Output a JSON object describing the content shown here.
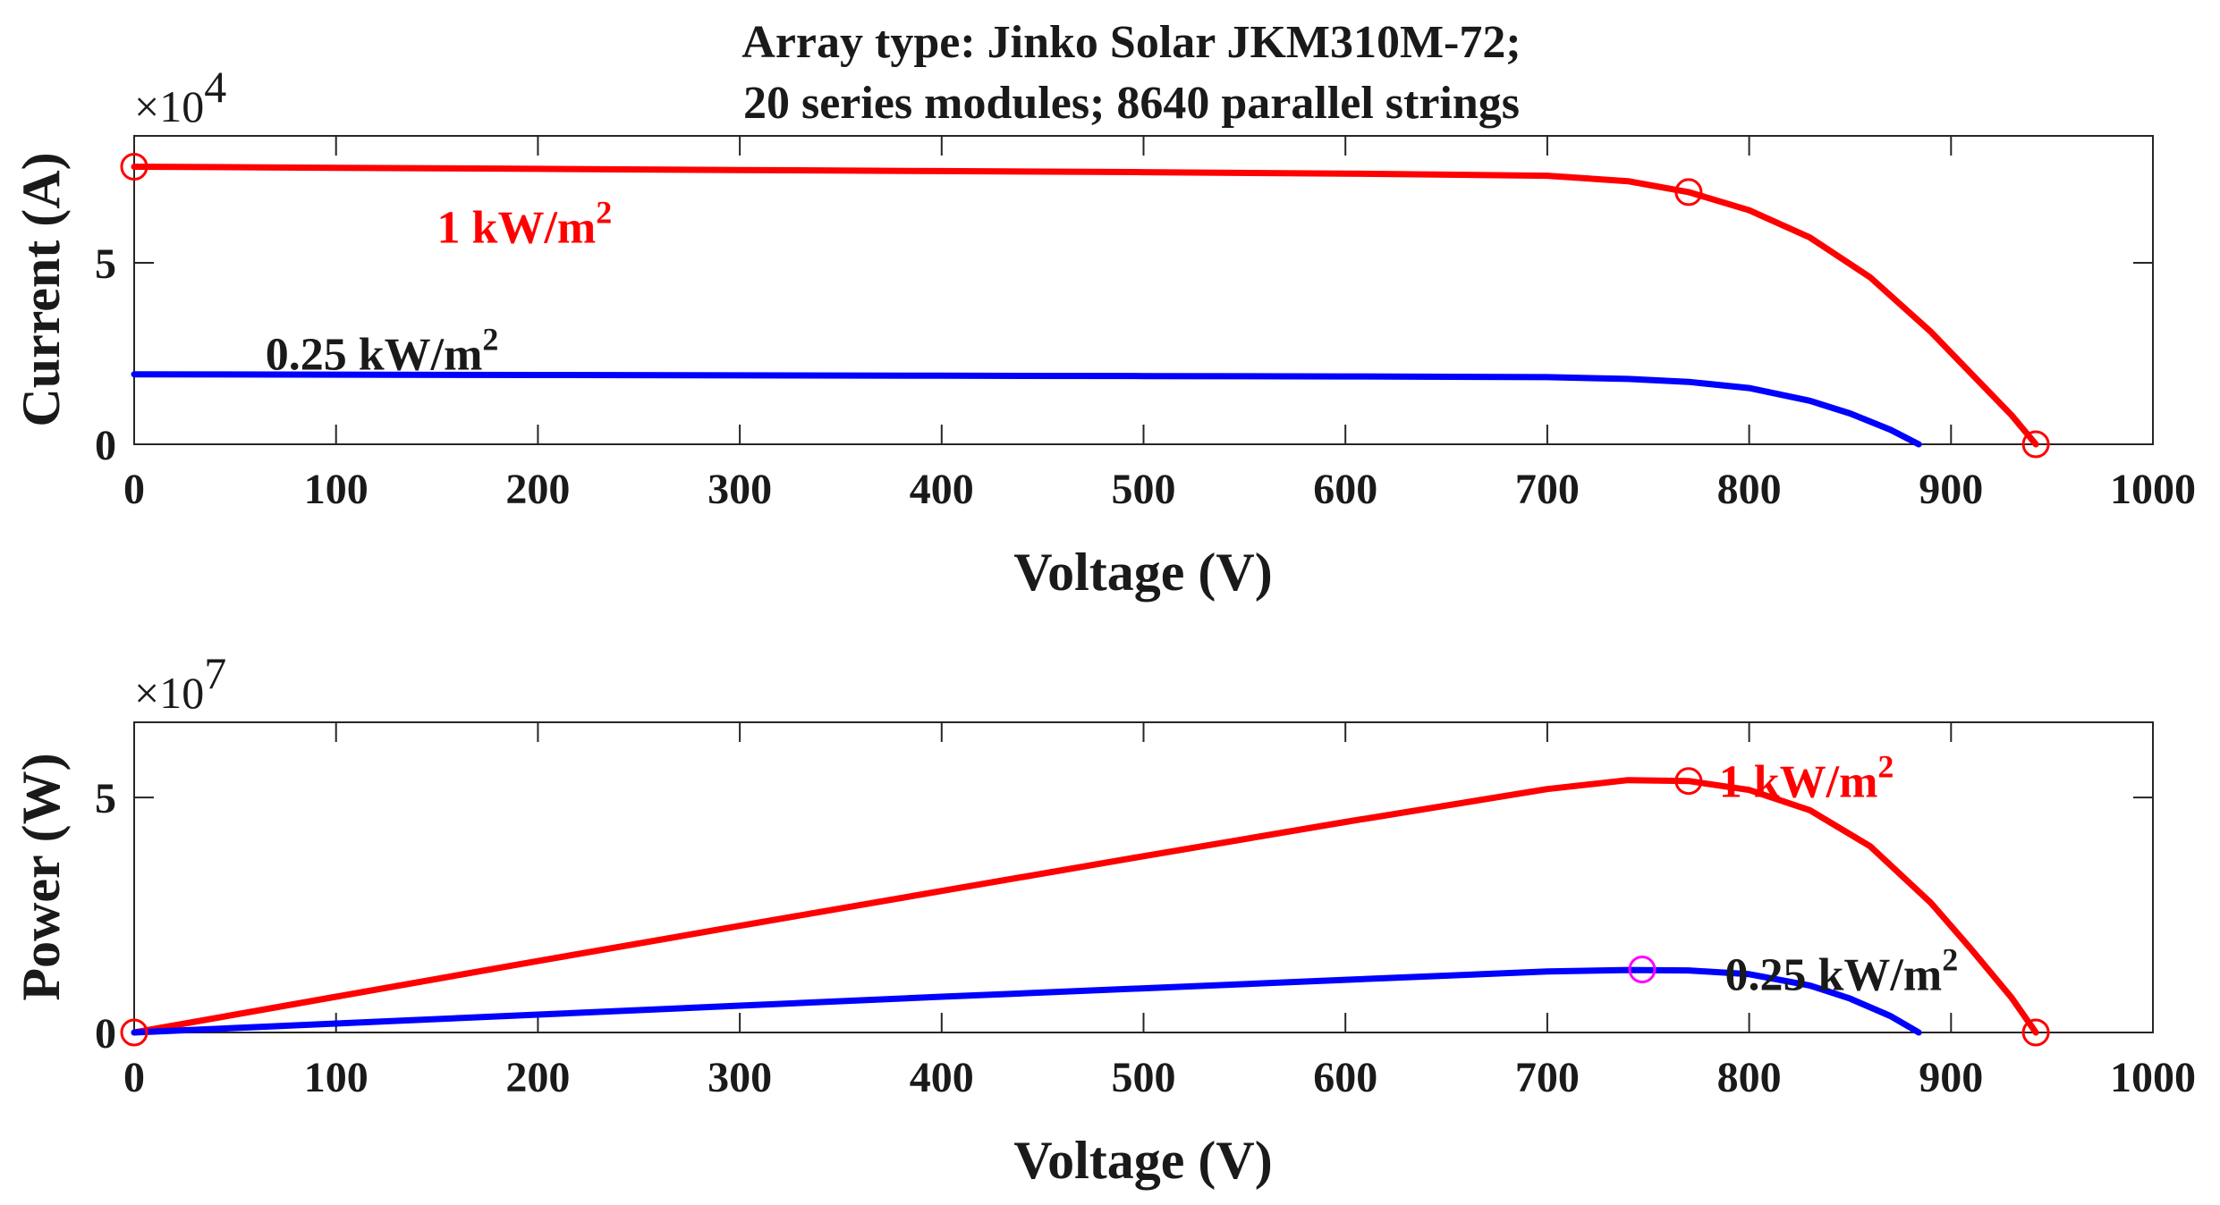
{
  "chart_data": [
    {
      "type": "line",
      "title_lines": [
        "Array type: Jinko Solar JKM310M-72;",
        "20 series modules; 8640 parallel strings"
      ],
      "xlabel": "Voltage (V)",
      "ylabel": "Current (A)",
      "exponent": "4",
      "exponent_base": "×10",
      "xlim": [
        0,
        1000
      ],
      "ylim": [
        0,
        8.5
      ],
      "xticks": [
        "0",
        "100",
        "200",
        "300",
        "400",
        "500",
        "600",
        "700",
        "800",
        "900",
        "1000"
      ],
      "yticks": [
        "0",
        "5"
      ],
      "grid": false,
      "series": [
        {
          "name": "1 kW/m2",
          "color": "#ff0000",
          "x": [
            0,
            100,
            200,
            300,
            400,
            500,
            600,
            700,
            740,
            770,
            800,
            830,
            860,
            890,
            910,
            930,
            942
          ],
          "y": [
            7.65,
            7.62,
            7.59,
            7.56,
            7.53,
            7.5,
            7.46,
            7.4,
            7.25,
            6.95,
            6.45,
            5.7,
            4.6,
            3.1,
            1.95,
            0.8,
            0.0
          ]
        },
        {
          "name": "0.25 kW/m2",
          "color": "#0000ff",
          "x": [
            0,
            100,
            200,
            300,
            400,
            500,
            600,
            700,
            740,
            770,
            800,
            830,
            850,
            870,
            884
          ],
          "y": [
            1.93,
            1.92,
            1.91,
            1.9,
            1.89,
            1.88,
            1.87,
            1.85,
            1.8,
            1.72,
            1.55,
            1.2,
            0.85,
            0.4,
            0.0
          ]
        }
      ],
      "markers": [
        {
          "x": 0,
          "y": 7.65,
          "color": "#ff0000"
        },
        {
          "x": 770,
          "y": 6.95,
          "color": "#ff0000"
        },
        {
          "x": 942,
          "y": 0.0,
          "color": "#ff0000"
        }
      ],
      "annotations": [
        {
          "text": "1 kW/m",
          "sup": "2",
          "color": "#ff0000",
          "x": 150,
          "y": 6.0
        },
        {
          "text": "0.25 kW/m",
          "sup": "2",
          "color": "#1a1a1a",
          "x": 65,
          "y": 2.5
        }
      ]
    },
    {
      "type": "line",
      "xlabel": "Voltage (V)",
      "ylabel": "Power (W)",
      "exponent": "7",
      "exponent_base": "×10",
      "xlim": [
        0,
        1000
      ],
      "ylim": [
        0,
        6.6
      ],
      "xticks": [
        "0",
        "100",
        "200",
        "300",
        "400",
        "500",
        "600",
        "700",
        "800",
        "900",
        "1000"
      ],
      "yticks": [
        "0",
        "5"
      ],
      "grid": false,
      "series": [
        {
          "name": "1 kW/m2",
          "color": "#ff0000",
          "x": [
            0,
            100,
            200,
            300,
            400,
            500,
            600,
            700,
            740,
            770,
            800,
            830,
            860,
            890,
            910,
            930,
            942
          ],
          "y": [
            0,
            0.76,
            1.52,
            2.27,
            3.01,
            3.75,
            4.48,
            5.18,
            5.37,
            5.35,
            5.16,
            4.73,
            3.96,
            2.76,
            1.77,
            0.74,
            0.0
          ]
        },
        {
          "name": "0.25 kW/m2",
          "color": "#0000ff",
          "x": [
            0,
            100,
            200,
            300,
            400,
            500,
            600,
            700,
            740,
            770,
            800,
            830,
            850,
            870,
            884
          ],
          "y": [
            0,
            0.19,
            0.38,
            0.57,
            0.76,
            0.94,
            1.12,
            1.3,
            1.33,
            1.32,
            1.24,
            1.0,
            0.72,
            0.35,
            0.0
          ]
        }
      ],
      "markers": [
        {
          "x": 0,
          "y": 0.0,
          "color": "#ff0000"
        },
        {
          "x": 770,
          "y": 5.35,
          "color": "#ff0000"
        },
        {
          "x": 747,
          "y": 1.34,
          "color": "#ff00ff"
        },
        {
          "x": 942,
          "y": 0.0,
          "color": "#ff0000"
        }
      ],
      "annotations": [
        {
          "text": "1 kW/m",
          "sup": "2",
          "color": "#ff0000",
          "x": 785,
          "y": 5.35
        },
        {
          "text": "0.25 kW/m",
          "sup": "2",
          "color": "#1a1a1a",
          "x": 788,
          "y": 1.25
        }
      ]
    }
  ]
}
